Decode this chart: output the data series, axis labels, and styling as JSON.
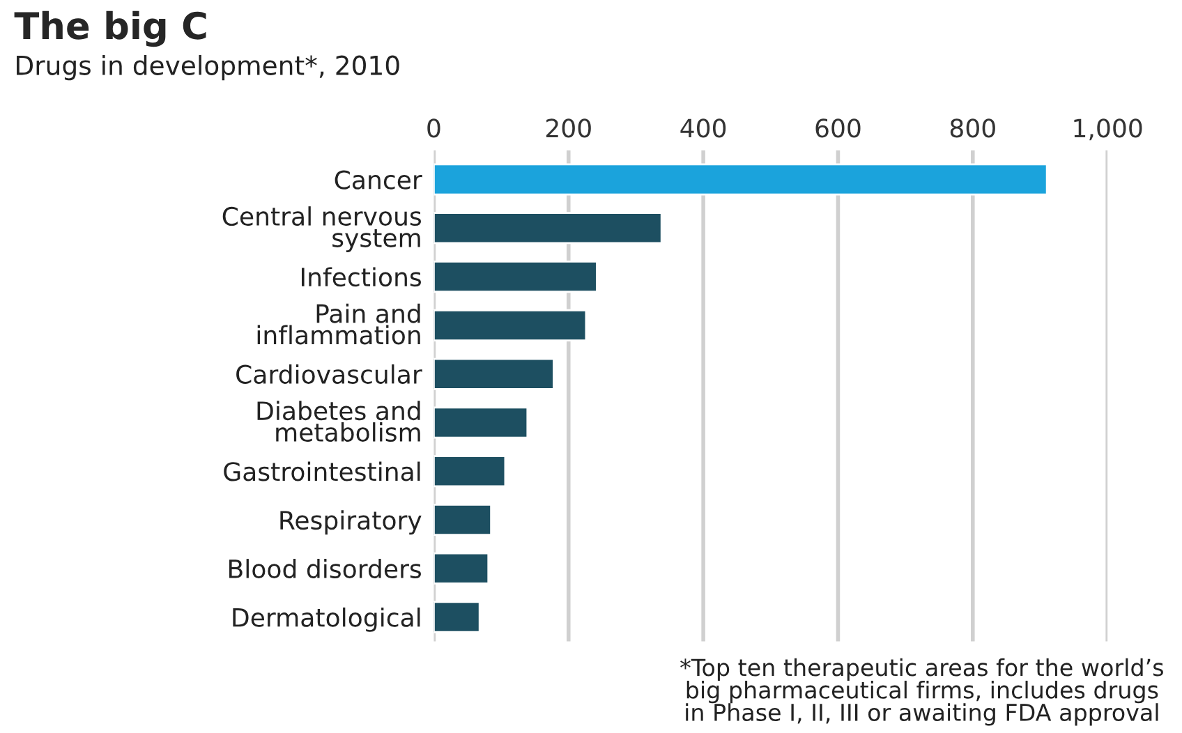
{
  "chart_data": {
    "type": "bar",
    "orientation": "horizontal",
    "title": "The big C",
    "subtitle": "Drugs in development*, 2010",
    "categories": [
      "Cancer",
      "Central nervous\nsystem",
      "Infections",
      "Pain and\ninflammation",
      "Cardiovascular",
      "Diabetes and\nmetabolism",
      "Gastrointestinal",
      "Respiratory",
      "Blood disorders",
      "Dermatological"
    ],
    "values": [
      910,
      338,
      242,
      226,
      178,
      139,
      106,
      85,
      81,
      68
    ],
    "colors": [
      "#1ba3dc",
      "#1d4f61",
      "#1d4f61",
      "#1d4f61",
      "#1d4f61",
      "#1d4f61",
      "#1d4f61",
      "#1d4f61",
      "#1d4f61",
      "#1d4f61"
    ],
    "xlim": [
      0,
      1000
    ],
    "xticks": [
      0,
      200,
      400,
      600,
      800,
      {
        "value": 1000,
        "label": "1,000"
      }
    ],
    "grid": "x",
    "annotations": [
      "*Top ten therapeutic areas for the world’s\nbig pharmaceutical firms, includes drugs\nin Phase I, II, III or awaiting FDA approval"
    ]
  }
}
